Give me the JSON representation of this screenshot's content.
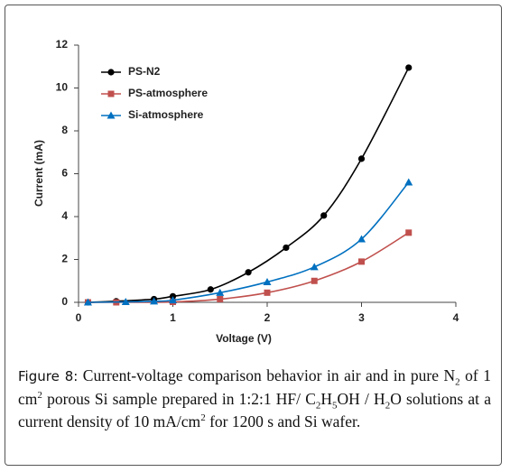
{
  "chart_data": {
    "type": "line",
    "x_label": "Voltage (V)",
    "y_label": "Current (mA)",
    "xlim": [
      0,
      4
    ],
    "xticks": [
      0,
      1,
      2,
      3,
      4
    ],
    "ylim": [
      0,
      12
    ],
    "yticks": [
      0,
      2,
      4,
      6,
      8,
      10,
      12
    ],
    "grid": false,
    "legend": "upper left",
    "smooth": true,
    "series": [
      {
        "name": "PS-N2",
        "color": "#000000",
        "marker": "circle",
        "x": [
          0.1,
          0.4,
          0.8,
          1.0,
          1.4,
          1.8,
          2.2,
          2.6,
          3.0,
          3.5
        ],
        "values": [
          0,
          0.05,
          0.15,
          0.28,
          0.6,
          1.4,
          2.55,
          4.05,
          6.7,
          10.95
        ]
      },
      {
        "name": "PS-atmosphere",
        "color": "#c0504d",
        "marker": "square",
        "x": [
          0.1,
          0.4,
          1.0,
          1.5,
          2.0,
          2.5,
          3.0,
          3.5
        ],
        "values": [
          0,
          0,
          0.02,
          0.15,
          0.45,
          1.0,
          1.9,
          3.25
        ]
      },
      {
        "name": "Si-atmosphere",
        "color": "#0070c0",
        "marker": "triangle",
        "x": [
          0.1,
          0.5,
          0.8,
          1.0,
          1.5,
          2.0,
          2.5,
          3.0,
          3.5
        ],
        "values": [
          0,
          0.02,
          0.05,
          0.1,
          0.45,
          0.95,
          1.65,
          2.95,
          5.6
        ]
      }
    ]
  },
  "caption": {
    "label": "Figure 8:",
    "runs": [
      {
        "text": " Current-voltage comparison behavior in air and in pure N"
      },
      {
        "text": "2",
        "script": "sub"
      },
      {
        "text": " of 1 cm"
      },
      {
        "text": "2",
        "script": "sup"
      },
      {
        "text": " porous Si sample prepared in 1:2:1 HF/ C"
      },
      {
        "text": "2",
        "script": "sub"
      },
      {
        "text": "H"
      },
      {
        "text": "5",
        "script": "sub"
      },
      {
        "text": "OH / H"
      },
      {
        "text": "2",
        "script": "sub"
      },
      {
        "text": "O solutions at a current density of 10 mA/cm"
      },
      {
        "text": "2",
        "script": "sup"
      },
      {
        "text": " for 1200 s and Si wafer."
      }
    ]
  }
}
